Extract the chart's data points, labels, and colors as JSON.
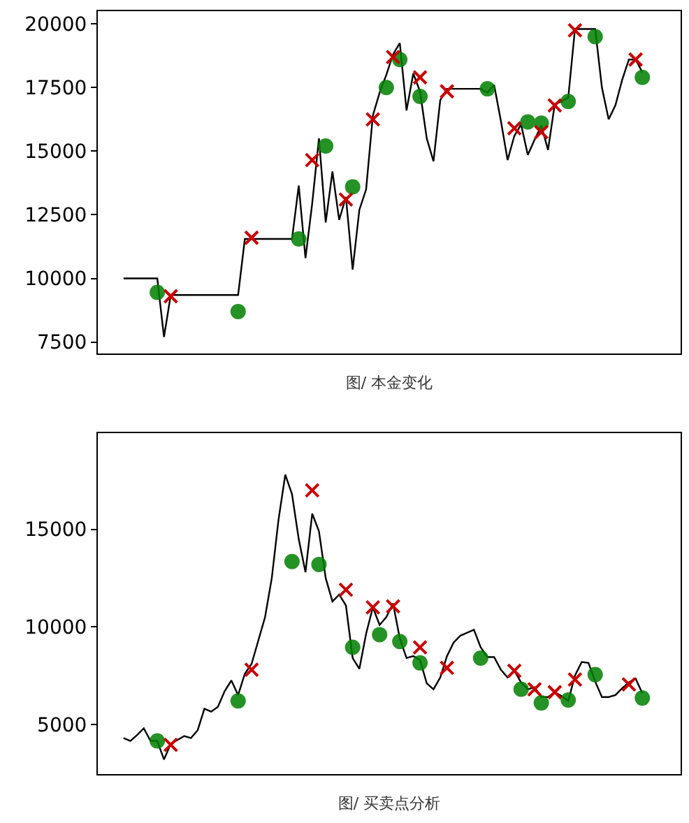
{
  "chart_data": [
    {
      "type": "line",
      "xlabel": "图/ 本金变化",
      "ylim": [
        7050,
        20500
      ],
      "yticks": [
        7500,
        10000,
        12500,
        15000,
        17500,
        20000
      ],
      "grid": false,
      "categories": [
        null,
        null,
        null,
        null,
        null,
        null,
        null,
        null,
        null,
        null,
        null,
        null,
        null,
        null,
        null,
        null,
        null,
        null,
        null,
        null,
        null,
        null,
        null,
        null,
        null,
        null,
        null,
        null,
        null,
        null,
        null,
        null,
        null,
        null,
        null,
        null,
        null,
        null,
        null,
        null,
        null,
        null,
        null,
        null,
        null,
        null,
        null,
        null,
        null,
        null,
        null,
        null,
        null,
        null,
        null,
        null,
        null,
        null,
        null,
        null,
        null,
        null,
        null,
        null,
        null,
        null,
        null,
        null,
        null,
        null,
        null,
        null,
        null,
        null,
        null,
        null,
        null,
        null
      ],
      "series": [
        {
          "type": "line",
          "color": "#000000",
          "marker": "none",
          "line_style": "solid",
          "values": [
            10000,
            10000,
            10000,
            10000,
            10000,
            10000,
            7700,
            9350,
            9350,
            9350,
            9350,
            9350,
            9350,
            9350,
            9350,
            9350,
            9350,
            9350,
            11550,
            11550,
            11550,
            11550,
            11550,
            11550,
            11550,
            11550,
            13650,
            10800,
            12950,
            15500,
            12200,
            14200,
            12300,
            13200,
            10350,
            12700,
            13500,
            16400,
            17300,
            18000,
            18800,
            19250,
            16600,
            18050,
            17350,
            15500,
            14600,
            17000,
            17450,
            17450,
            17450,
            17450,
            17450,
            17450,
            17300,
            17600,
            16200,
            14650,
            15600,
            16050,
            14850,
            15450,
            16000,
            15050,
            16850,
            16950,
            17100,
            19800,
            19800,
            19800,
            19800,
            17500,
            16250,
            16800,
            17800,
            18600,
            18600,
            18100
          ]
        },
        {
          "type": "scatter",
          "color": "#008000",
          "marker": "circle",
          "values": [
            null,
            null,
            null,
            null,
            null,
            9450,
            null,
            null,
            null,
            null,
            null,
            null,
            null,
            null,
            null,
            null,
            null,
            8700,
            null,
            null,
            null,
            null,
            null,
            null,
            null,
            null,
            11550,
            null,
            null,
            null,
            15200,
            null,
            null,
            null,
            13600,
            null,
            null,
            null,
            null,
            17500,
            null,
            18600,
            null,
            null,
            17150,
            null,
            null,
            null,
            null,
            null,
            null,
            null,
            null,
            null,
            17450,
            null,
            null,
            null,
            null,
            null,
            16150,
            null,
            16100,
            null,
            null,
            null,
            16950,
            null,
            null,
            null,
            19500,
            null,
            null,
            null,
            null,
            null,
            null,
            17900
          ]
        },
        {
          "type": "scatter",
          "color": "#cc0000",
          "marker": "cross",
          "values": [
            null,
            null,
            null,
            null,
            null,
            null,
            null,
            9300,
            null,
            null,
            null,
            null,
            null,
            null,
            null,
            null,
            null,
            null,
            null,
            11600,
            null,
            null,
            null,
            null,
            null,
            null,
            null,
            null,
            14650,
            null,
            null,
            null,
            null,
            13100,
            null,
            null,
            null,
            16250,
            null,
            null,
            18700,
            null,
            null,
            null,
            17900,
            null,
            null,
            null,
            17350,
            null,
            null,
            null,
            null,
            null,
            null,
            null,
            null,
            null,
            15900,
            null,
            null,
            null,
            15750,
            null,
            16800,
            null,
            null,
            19750,
            null,
            null,
            null,
            null,
            null,
            null,
            null,
            null,
            18600,
            null
          ]
        }
      ]
    },
    {
      "type": "line",
      "xlabel": "图/ 买卖点分析",
      "ylim": [
        2450,
        19930
      ],
      "yticks": [
        5000,
        10000,
        15000
      ],
      "grid": false,
      "categories": [
        null,
        null,
        null,
        null,
        null,
        null,
        null,
        null,
        null,
        null,
        null,
        null,
        null,
        null,
        null,
        null,
        null,
        null,
        null,
        null,
        null,
        null,
        null,
        null,
        null,
        null,
        null,
        null,
        null,
        null,
        null,
        null,
        null,
        null,
        null,
        null,
        null,
        null,
        null,
        null,
        null,
        null,
        null,
        null,
        null,
        null,
        null,
        null,
        null,
        null,
        null,
        null,
        null,
        null,
        null,
        null,
        null,
        null,
        null,
        null,
        null,
        null,
        null,
        null,
        null,
        null,
        null,
        null,
        null,
        null,
        null,
        null,
        null,
        null,
        null,
        null,
        null,
        null
      ],
      "series": [
        {
          "type": "line",
          "color": "#000000",
          "marker": "none",
          "line_style": "solid",
          "values": [
            4300,
            4150,
            4450,
            4800,
            4150,
            4150,
            3200,
            4000,
            4200,
            4400,
            4300,
            4700,
            5800,
            5650,
            5900,
            6700,
            7250,
            6500,
            7600,
            8100,
            9300,
            10500,
            12500,
            15500,
            17800,
            16800,
            14500,
            12800,
            15800,
            14900,
            12500,
            11300,
            11650,
            11100,
            8400,
            7850,
            9650,
            11000,
            10100,
            10500,
            11200,
            9400,
            8400,
            8500,
            8300,
            7100,
            6800,
            7400,
            8500,
            9200,
            9550,
            9700,
            9850,
            8950,
            8450,
            8450,
            7800,
            7400,
            7750,
            7150,
            6800,
            6900,
            6400,
            6400,
            6650,
            6450,
            6200,
            7500,
            8200,
            8150,
            7200,
            6400,
            6400,
            6500,
            6850,
            7150,
            7350,
            6600
          ]
        },
        {
          "type": "scatter",
          "color": "#008000",
          "marker": "circle",
          "values": [
            null,
            null,
            null,
            null,
            null,
            4150,
            null,
            null,
            null,
            null,
            null,
            null,
            null,
            null,
            null,
            null,
            null,
            6200,
            null,
            null,
            null,
            null,
            null,
            null,
            null,
            13350,
            null,
            null,
            null,
            13200,
            null,
            null,
            null,
            null,
            8950,
            null,
            null,
            null,
            9600,
            null,
            null,
            9250,
            null,
            null,
            8150,
            null,
            null,
            null,
            null,
            null,
            null,
            null,
            null,
            8400,
            null,
            null,
            null,
            null,
            null,
            6800,
            null,
            null,
            6100,
            null,
            null,
            null,
            6250,
            null,
            null,
            null,
            7550,
            null,
            null,
            null,
            null,
            null,
            null,
            6350
          ]
        },
        {
          "type": "scatter",
          "color": "#cc0000",
          "marker": "cross",
          "values": [
            null,
            null,
            null,
            null,
            null,
            null,
            null,
            3950,
            null,
            null,
            null,
            null,
            null,
            null,
            null,
            null,
            null,
            null,
            null,
            7800,
            null,
            null,
            null,
            null,
            null,
            null,
            null,
            null,
            17000,
            null,
            null,
            null,
            null,
            11900,
            null,
            null,
            null,
            11000,
            null,
            null,
            11050,
            null,
            null,
            null,
            8950,
            null,
            null,
            null,
            7900,
            null,
            null,
            null,
            null,
            null,
            null,
            null,
            null,
            null,
            7750,
            null,
            null,
            6800,
            null,
            null,
            6650,
            null,
            null,
            7300,
            null,
            null,
            null,
            null,
            null,
            null,
            null,
            7050,
            null,
            null
          ]
        }
      ]
    }
  ]
}
